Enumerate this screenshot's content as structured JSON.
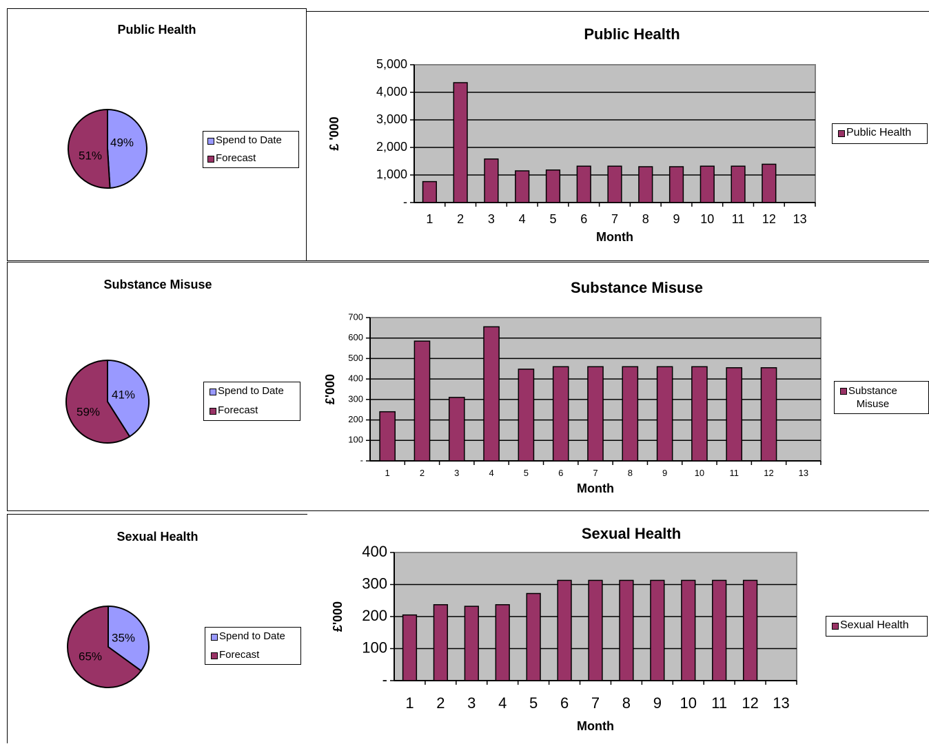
{
  "colors": {
    "spend": "#9999ff",
    "forecast": "#993366",
    "bar": "#993366",
    "plot_bg": "#c0c0c0",
    "grid": "#000000"
  },
  "charts": [
    {
      "id": "public-health",
      "pie": {
        "title": "Public Health",
        "labels": [
          "Spend to Date",
          "Forecast"
        ],
        "slice_labels": [
          "49%",
          "51%"
        ],
        "legend": [
          "Spend to Date",
          "Forecast"
        ]
      },
      "bar": {
        "title": "Public Health",
        "ylabel": "£ '000",
        "xlabel": "Month",
        "legend": "Public Health",
        "y_ticks": [
          "-",
          "1,000",
          "2,000",
          "3,000",
          "4,000",
          "5,000"
        ]
      }
    },
    {
      "id": "substance-misuse",
      "pie": {
        "title": "Substance Misuse",
        "labels": [
          "Spend to Date",
          "Forecast"
        ],
        "slice_labels": [
          "41%",
          "59%"
        ],
        "legend": [
          "Spend to Date",
          "Forecast"
        ]
      },
      "bar": {
        "title": "Substance Misuse",
        "ylabel": "£'000",
        "xlabel": "Month",
        "legend": "Substance\nMisuse",
        "y_ticks": [
          "-",
          "100",
          "200",
          "300",
          "400",
          "500",
          "600",
          "700"
        ]
      }
    },
    {
      "id": "sexual-health",
      "pie": {
        "title": "Sexual Health",
        "labels": [
          "Spend to Date",
          "Forecast"
        ],
        "slice_labels": [
          "35%",
          "65%"
        ],
        "legend": [
          "Spend to Date",
          "Forecast"
        ]
      },
      "bar": {
        "title": "Sexual Health",
        "ylabel": "£'000",
        "xlabel": "Month",
        "legend": "Sexual Health",
        "y_ticks": [
          "-",
          "100",
          "200",
          "300",
          "400"
        ]
      }
    }
  ],
  "chart_data": [
    {
      "type": "pie",
      "title": "Public Health",
      "labels": [
        "Spend to Date",
        "Forecast"
      ],
      "values": [
        49,
        51
      ]
    },
    {
      "type": "bar",
      "title": "Public Health",
      "xlabel": "Month",
      "ylabel": "£ '000",
      "categories": [
        "1",
        "2",
        "3",
        "4",
        "5",
        "6",
        "7",
        "8",
        "9",
        "10",
        "11",
        "12",
        "13"
      ],
      "series": [
        {
          "name": "Public Health",
          "values": [
            760,
            4350,
            1580,
            1150,
            1180,
            1320,
            1320,
            1300,
            1300,
            1320,
            1320,
            1390,
            0
          ]
        }
      ],
      "ylim": [
        0,
        5000
      ],
      "grid": true,
      "legend": "right"
    },
    {
      "type": "pie",
      "title": "Substance Misuse",
      "labels": [
        "Spend to Date",
        "Forecast"
      ],
      "values": [
        41,
        59
      ]
    },
    {
      "type": "bar",
      "title": "Substance Misuse",
      "xlabel": "Month",
      "ylabel": "£'000",
      "categories": [
        "1",
        "2",
        "3",
        "4",
        "5",
        "6",
        "7",
        "8",
        "9",
        "10",
        "11",
        "12",
        "13"
      ],
      "series": [
        {
          "name": "Substance Misuse",
          "values": [
            240,
            585,
            310,
            655,
            448,
            460,
            460,
            460,
            460,
            460,
            455,
            455,
            0
          ]
        }
      ],
      "ylim": [
        0,
        700
      ],
      "grid": true,
      "legend": "right"
    },
    {
      "type": "pie",
      "title": "Sexual Health",
      "labels": [
        "Spend to Date",
        "Forecast"
      ],
      "values": [
        35,
        65
      ]
    },
    {
      "type": "bar",
      "title": "Sexual Health",
      "xlabel": "Month",
      "ylabel": "£'000",
      "categories": [
        "1",
        "2",
        "3",
        "4",
        "5",
        "6",
        "7",
        "8",
        "9",
        "10",
        "11",
        "12",
        "13"
      ],
      "series": [
        {
          "name": "Sexual Health",
          "values": [
            205,
            237,
            232,
            237,
            272,
            313,
            313,
            313,
            313,
            313,
            313,
            313,
            0
          ]
        }
      ],
      "ylim": [
        0,
        400
      ],
      "grid": true,
      "legend": "right"
    }
  ]
}
